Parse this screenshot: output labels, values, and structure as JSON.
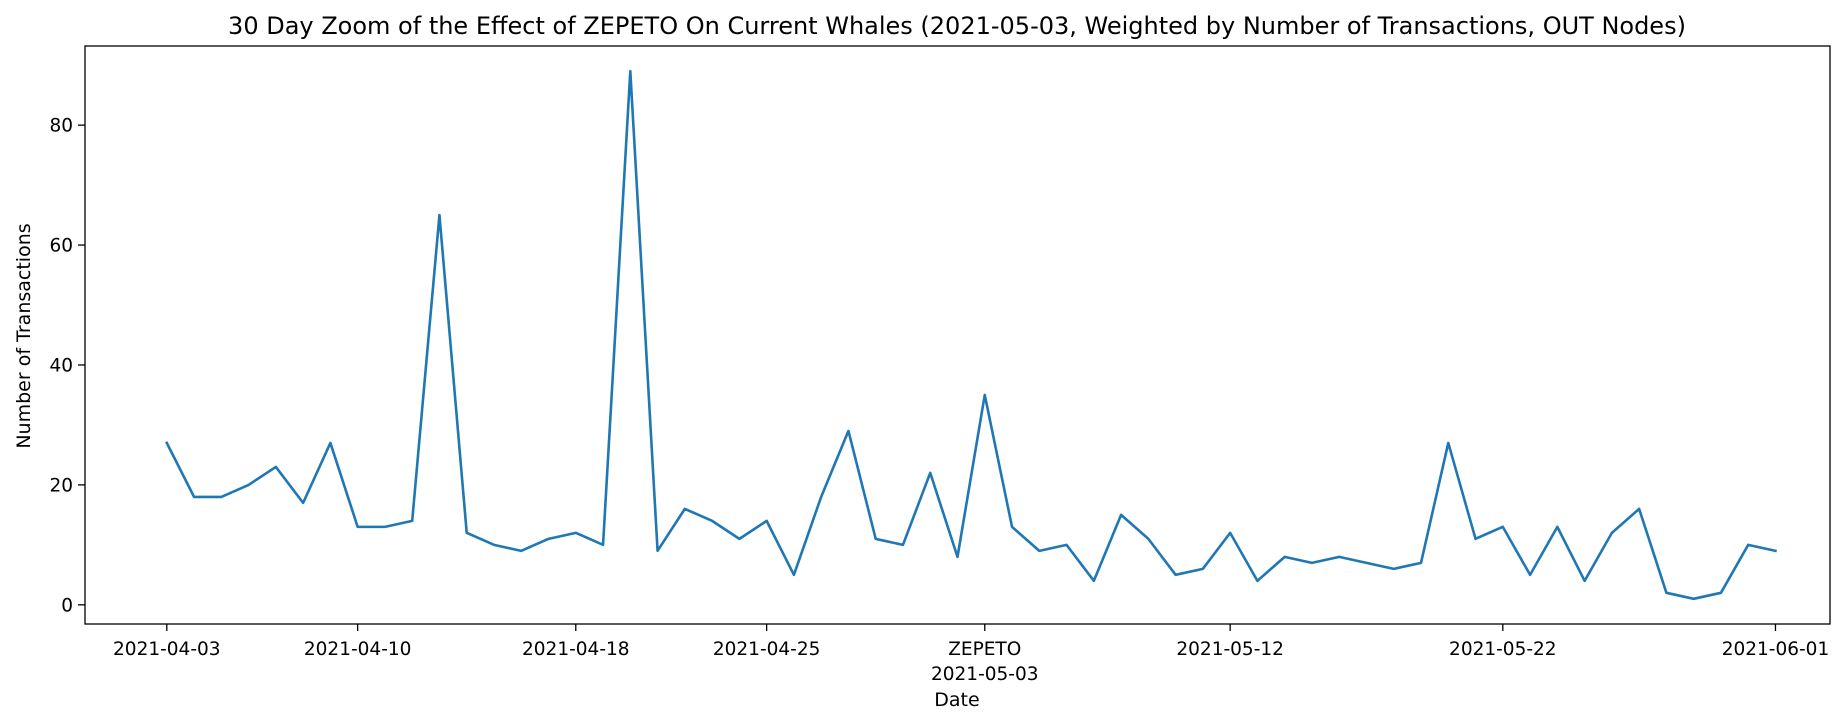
{
  "chart_data": {
    "type": "line",
    "title": "30 Day Zoom of the Effect of ZEPETO On Current Whales (2021-05-03, Weighted by Number of Transactions, OUT Nodes)",
    "xlabel": "Date",
    "ylabel": "Number of Transactions",
    "xlim": [
      "2021-04-00",
      "2021-06-03"
    ],
    "ylim": [
      -3.2,
      93.2
    ],
    "yticks": [
      0,
      20,
      40,
      60,
      80
    ],
    "xticks": [
      {
        "date": "2021-04-03",
        "label": "2021-04-03"
      },
      {
        "date": "2021-04-10",
        "label": "2021-04-10"
      },
      {
        "date": "2021-04-18",
        "label": "2021-04-18"
      },
      {
        "date": "2021-04-25",
        "label": "2021-04-25"
      },
      {
        "date": "2021-05-03",
        "label": "2021-05-03"
      },
      {
        "date": "2021-05-12",
        "label": "2021-05-12"
      },
      {
        "date": "2021-05-22",
        "label": "2021-05-22"
      },
      {
        "date": "2021-06-01",
        "label": "2021-06-01"
      }
    ],
    "event_marker": {
      "label": "ZEPETO",
      "date": "2021-05-03"
    },
    "grid": false,
    "series": [
      {
        "color": "#1f77b4",
        "points": [
          [
            "2021-04-03",
            27
          ],
          [
            "2021-04-04",
            18
          ],
          [
            "2021-04-05",
            18
          ],
          [
            "2021-04-06",
            20
          ],
          [
            "2021-04-07",
            23
          ],
          [
            "2021-04-08",
            17
          ],
          [
            "2021-04-09",
            27
          ],
          [
            "2021-04-10",
            13
          ],
          [
            "2021-04-11",
            13
          ],
          [
            "2021-04-12",
            14
          ],
          [
            "2021-04-13",
            65
          ],
          [
            "2021-04-14",
            12
          ],
          [
            "2021-04-15",
            10
          ],
          [
            "2021-04-16",
            9
          ],
          [
            "2021-04-17",
            11
          ],
          [
            "2021-04-18",
            12
          ],
          [
            "2021-04-19",
            10
          ],
          [
            "2021-04-20",
            89
          ],
          [
            "2021-04-21",
            9
          ],
          [
            "2021-04-22",
            16
          ],
          [
            "2021-04-23",
            14
          ],
          [
            "2021-04-24",
            11
          ],
          [
            "2021-04-25",
            14
          ],
          [
            "2021-04-26",
            5
          ],
          [
            "2021-04-27",
            18
          ],
          [
            "2021-04-28",
            29
          ],
          [
            "2021-04-29",
            11
          ],
          [
            "2021-04-30",
            10
          ],
          [
            "2021-05-01",
            22
          ],
          [
            "2021-05-02",
            8
          ],
          [
            "2021-05-03",
            35
          ],
          [
            "2021-05-04",
            13
          ],
          [
            "2021-05-05",
            9
          ],
          [
            "2021-05-06",
            10
          ],
          [
            "2021-05-07",
            4
          ],
          [
            "2021-05-08",
            15
          ],
          [
            "2021-05-09",
            11
          ],
          [
            "2021-05-10",
            5
          ],
          [
            "2021-05-11",
            6
          ],
          [
            "2021-05-12",
            12
          ],
          [
            "2021-05-13",
            4
          ],
          [
            "2021-05-14",
            8
          ],
          [
            "2021-05-15",
            7
          ],
          [
            "2021-05-16",
            8
          ],
          [
            "2021-05-17",
            7
          ],
          [
            "2021-05-18",
            6
          ],
          [
            "2021-05-19",
            7
          ],
          [
            "2021-05-20",
            27
          ],
          [
            "2021-05-21",
            11
          ],
          [
            "2021-05-22",
            13
          ],
          [
            "2021-05-23",
            5
          ],
          [
            "2021-05-24",
            13
          ],
          [
            "2021-05-25",
            4
          ],
          [
            "2021-05-26",
            12
          ],
          [
            "2021-05-27",
            16
          ],
          [
            "2021-05-28",
            2
          ],
          [
            "2021-05-29",
            1
          ],
          [
            "2021-05-30",
            2
          ],
          [
            "2021-05-31",
            10
          ],
          [
            "2021-06-01",
            9
          ]
        ]
      }
    ]
  }
}
